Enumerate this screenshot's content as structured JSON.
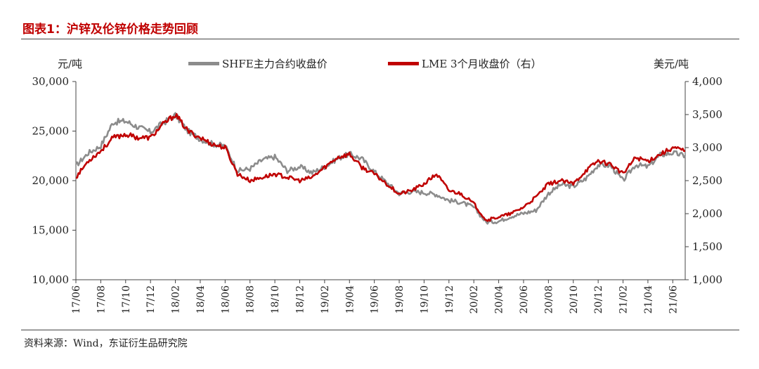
{
  "title": "图表1：沪锌及伦锌价格走势回顾",
  "source": "资料来源：Wind，东证衍生品研究院",
  "chart_data": {
    "type": "line",
    "ylabel": "元/吨",
    "y2label": "美元/吨",
    "ylim": [
      10000,
      30000
    ],
    "y2lim": [
      1000,
      4000
    ],
    "yticks": [
      "10,000",
      "15,000",
      "20,000",
      "25,000",
      "30,000"
    ],
    "y2ticks": [
      "1,000",
      "1,500",
      "2,000",
      "2,500",
      "3,000",
      "3,500",
      "4,000"
    ],
    "x_ticks": [
      "17/06",
      "17/08",
      "17/10",
      "17/12",
      "18/02",
      "18/04",
      "18/06",
      "18/08",
      "18/10",
      "18/12",
      "19/02",
      "19/04",
      "19/06",
      "19/08",
      "19/10",
      "19/12",
      "20/02",
      "20/04",
      "20/06",
      "20/08",
      "20/10",
      "20/12",
      "21/02",
      "21/04",
      "21/06"
    ],
    "legend_position": "top",
    "grid": false,
    "series": [
      {
        "name": "SHFE主力合约收盘价",
        "axis": "left",
        "color": "#8c8c8c",
        "x": [
          "17/06",
          "17/07",
          "17/08",
          "17/09",
          "17/10",
          "17/11",
          "17/12",
          "18/01",
          "18/02",
          "18/03",
          "18/04",
          "18/05",
          "18/06",
          "18/07",
          "18/08",
          "18/09",
          "18/10",
          "18/11",
          "18/12",
          "19/01",
          "19/02",
          "19/03",
          "19/04",
          "19/05",
          "19/06",
          "19/07",
          "19/08",
          "19/09",
          "19/10",
          "19/11",
          "19/12",
          "20/01",
          "20/02",
          "20/03",
          "20/04",
          "20/05",
          "20/06",
          "20/07",
          "20/08",
          "20/09",
          "20/10",
          "20/11",
          "20/12",
          "21/01",
          "21/02",
          "21/03",
          "21/04",
          "21/05",
          "21/06",
          "21/07"
        ],
        "values": [
          21500,
          22800,
          23500,
          25900,
          26000,
          25400,
          24900,
          25800,
          26600,
          25000,
          24200,
          23700,
          23500,
          21000,
          21200,
          22100,
          22400,
          21000,
          21400,
          20800,
          21400,
          22200,
          22700,
          22200,
          20900,
          19800,
          18700,
          18900,
          18800,
          18600,
          18000,
          17800,
          17300,
          15800,
          15900,
          16400,
          16700,
          17000,
          18700,
          19600,
          19400,
          20200,
          21600,
          21500,
          20000,
          21600,
          21400,
          22600,
          22800,
          22500
        ]
      },
      {
        "name": "LME 3个月收盘价（右）",
        "axis": "right",
        "color": "#c00000",
        "x": [
          "17/06",
          "17/07",
          "17/08",
          "17/09",
          "17/10",
          "17/11",
          "17/12",
          "18/01",
          "18/02",
          "18/03",
          "18/04",
          "18/05",
          "18/06",
          "18/07",
          "18/08",
          "18/09",
          "18/10",
          "18/11",
          "18/12",
          "19/01",
          "19/02",
          "19/03",
          "19/04",
          "19/05",
          "19/06",
          "19/07",
          "19/08",
          "19/09",
          "19/10",
          "19/11",
          "19/12",
          "20/01",
          "20/02",
          "20/03",
          "20/04",
          "20/05",
          "20/06",
          "20/07",
          "20/08",
          "20/09",
          "20/10",
          "20/11",
          "20/12",
          "21/01",
          "21/02",
          "21/03",
          "21/04",
          "21/05",
          "21/06",
          "21/07"
        ],
        "values": [
          2550,
          2800,
          2950,
          3150,
          3200,
          3150,
          3150,
          3350,
          3500,
          3250,
          3150,
          3050,
          3000,
          2600,
          2500,
          2550,
          2600,
          2550,
          2500,
          2550,
          2700,
          2850,
          2900,
          2700,
          2600,
          2450,
          2300,
          2350,
          2450,
          2600,
          2350,
          2300,
          2150,
          1900,
          1950,
          2000,
          2100,
          2250,
          2450,
          2500,
          2450,
          2650,
          2800,
          2750,
          2600,
          2850,
          2800,
          2900,
          3000,
          2950
        ]
      }
    ]
  }
}
